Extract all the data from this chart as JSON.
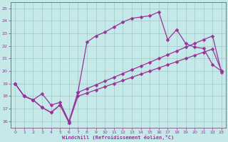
{
  "xlabel": "Windchill (Refroidissement éolien,°C)",
  "xlim": [
    -0.5,
    23.5
  ],
  "ylim": [
    15.5,
    25.5
  ],
  "xticks": [
    0,
    1,
    2,
    3,
    4,
    5,
    6,
    7,
    8,
    9,
    10,
    11,
    12,
    13,
    14,
    15,
    16,
    17,
    18,
    19,
    20,
    21,
    22,
    23
  ],
  "yticks": [
    16,
    17,
    18,
    19,
    20,
    21,
    22,
    23,
    24,
    25
  ],
  "bg_color": "#c5e8e8",
  "grid_color": "#a0c8c8",
  "line_color": "#993399",
  "line1_x": [
    0,
    1,
    2,
    3,
    4,
    5,
    6,
    7,
    8,
    9,
    10,
    11,
    12,
    13,
    14,
    15,
    16,
    17,
    18,
    19,
    20,
    21,
    22,
    23
  ],
  "line1_y": [
    19.0,
    18.0,
    17.7,
    17.1,
    16.7,
    17.3,
    15.9,
    18.0,
    18.25,
    18.5,
    18.75,
    19.0,
    19.25,
    19.5,
    19.75,
    20.0,
    20.25,
    20.5,
    20.75,
    21.0,
    21.25,
    21.5,
    21.75,
    20.0
  ],
  "line2_x": [
    0,
    1,
    2,
    3,
    4,
    5,
    6,
    7,
    8,
    9,
    10,
    11,
    12,
    13,
    14,
    15,
    16,
    17,
    18,
    19,
    20,
    21,
    22,
    23
  ],
  "line2_y": [
    19.0,
    18.0,
    17.7,
    18.2,
    17.3,
    17.5,
    16.0,
    18.3,
    22.3,
    22.8,
    23.1,
    23.5,
    23.9,
    24.2,
    24.3,
    24.4,
    24.7,
    22.5,
    23.3,
    22.2,
    21.9,
    21.8,
    20.5,
    20.0
  ],
  "line3_x": [
    0,
    1,
    2,
    3,
    4,
    5,
    6,
    7,
    8,
    9,
    10,
    11,
    12,
    13,
    14,
    15,
    16,
    17,
    18,
    19,
    20,
    21,
    22,
    23
  ],
  "line3_y": [
    19.0,
    18.0,
    17.7,
    17.1,
    16.7,
    17.3,
    15.9,
    18.3,
    18.6,
    18.9,
    19.2,
    19.5,
    19.8,
    20.1,
    20.4,
    20.7,
    21.0,
    21.3,
    21.6,
    21.9,
    22.2,
    22.5,
    22.8,
    19.9
  ]
}
